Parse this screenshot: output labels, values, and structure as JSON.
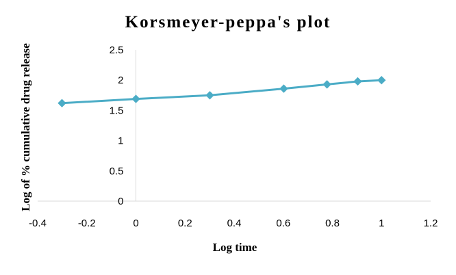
{
  "chart_data": {
    "type": "scatter",
    "title": "Korsmeyer-peppa's plot",
    "xlabel": "Log time",
    "ylabel": "Log of % cumulative drug release",
    "xlim": [
      -0.4,
      1.2
    ],
    "ylim": [
      0,
      2.5
    ],
    "x_ticks": [
      "-0.4",
      "-0.2",
      "0",
      "0.2",
      "0.4",
      "0.6",
      "0.8",
      "1",
      "1.2"
    ],
    "y_ticks": [
      "0",
      "0.5",
      "1",
      "1.5",
      "2",
      "2.5"
    ],
    "grid": false,
    "legend": "none",
    "series": [
      {
        "color": "#4BACC6",
        "marker": "diamond",
        "line": true,
        "x": [
          -0.301,
          0,
          0.301,
          0.602,
          0.778,
          0.903,
          1.0
        ],
        "y": [
          1.62,
          1.69,
          1.75,
          1.86,
          1.93,
          1.98,
          2.0
        ]
      }
    ]
  }
}
